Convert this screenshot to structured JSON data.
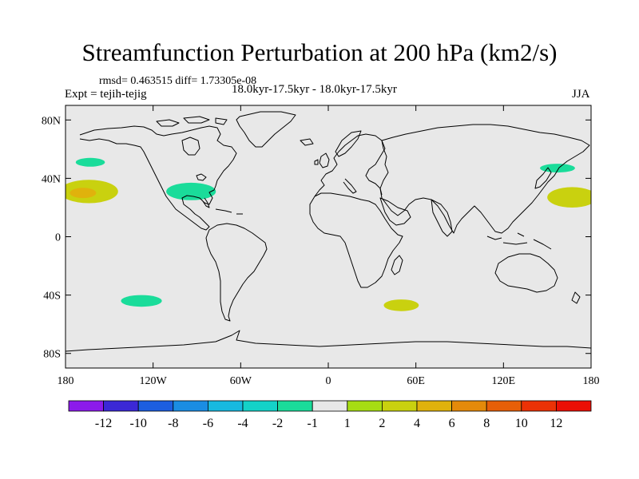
{
  "title": "Streamfunction Perturbation at 200 hPa (km2/s)",
  "stats_line": "rmsd= 0.463515 diff= 1.73305e-08",
  "experiment_line": "Expt = tejih-tejig",
  "period_line": "18.0kyr-17.5kyr - 18.0kyr-17.5kyr",
  "season": "JJA",
  "colors": {
    "ocean_bg": "#e8e8e8",
    "coast": "#000000"
  },
  "chart_data": {
    "type": "contour-map",
    "projection": "cylindrical-equidistant",
    "lon_range": [
      -180,
      180
    ],
    "lat_range": [
      -90,
      90
    ],
    "lat_ticks": [
      {
        "value": 80,
        "label": "80N"
      },
      {
        "value": 40,
        "label": "40N"
      },
      {
        "value": 0,
        "label": "0"
      },
      {
        "value": -40,
        "label": "40S"
      },
      {
        "value": -80,
        "label": "80S"
      }
    ],
    "lon_ticks": [
      {
        "value": -180,
        "label": "180"
      },
      {
        "value": -120,
        "label": "120W"
      },
      {
        "value": -60,
        "label": "60W"
      },
      {
        "value": 0,
        "label": "0"
      },
      {
        "value": 60,
        "label": "60E"
      },
      {
        "value": 120,
        "label": "120E"
      },
      {
        "value": 180,
        "label": "180"
      }
    ],
    "anomaly_patches": [
      {
        "name": "north-pacific-west-coast-negative",
        "lon": -163,
        "lat": 51,
        "rlon": 10,
        "rlat": 3,
        "level": -2
      },
      {
        "name": "northeast-pacific-positive-outer",
        "lon": -164,
        "lat": 31,
        "rlon": 20,
        "rlat": 8,
        "level": 2
      },
      {
        "name": "northeast-pacific-positive-inner",
        "lon": -168,
        "lat": 30,
        "rlon": 9,
        "rlat": 3.5,
        "level": 4
      },
      {
        "name": "north-america-negative",
        "lon": -94,
        "lat": 31,
        "rlon": 17,
        "rlat": 6,
        "level": -2
      },
      {
        "name": "japan-negative",
        "lon": 157,
        "lat": 47,
        "rlon": 12,
        "rlat": 3,
        "level": -2
      },
      {
        "name": "northwest-pacific-positive",
        "lon": 167,
        "lat": 27,
        "rlon": 17,
        "rlat": 7,
        "level": 2
      },
      {
        "name": "south-pacific-negative",
        "lon": -128,
        "lat": -44,
        "rlon": 14,
        "rlat": 4,
        "level": -2
      },
      {
        "name": "south-indian-positive",
        "lon": 50,
        "lat": -47,
        "rlon": 12,
        "rlat": 4,
        "level": 2
      }
    ],
    "colorbar": {
      "levels": [
        -12,
        -10,
        -8,
        -6,
        -4,
        -2,
        -1,
        1,
        2,
        4,
        6,
        8,
        10,
        12
      ],
      "labels": [
        "-12",
        "-10",
        "-8",
        "-6",
        "-4",
        "-2",
        "-1",
        "1",
        "2",
        "4",
        "6",
        "8",
        "10",
        "12"
      ],
      "colors": [
        "#8c1aeb",
        "#3b28d6",
        "#1c5ee0",
        "#1a8de3",
        "#17b9e0",
        "#14d2c8",
        "#1adc9a",
        "#e8e8e8",
        "#a6dd14",
        "#c9d10f",
        "#e0b20c",
        "#e48a0a",
        "#e75f08",
        "#eb3206",
        "#eb0f05"
      ]
    }
  }
}
